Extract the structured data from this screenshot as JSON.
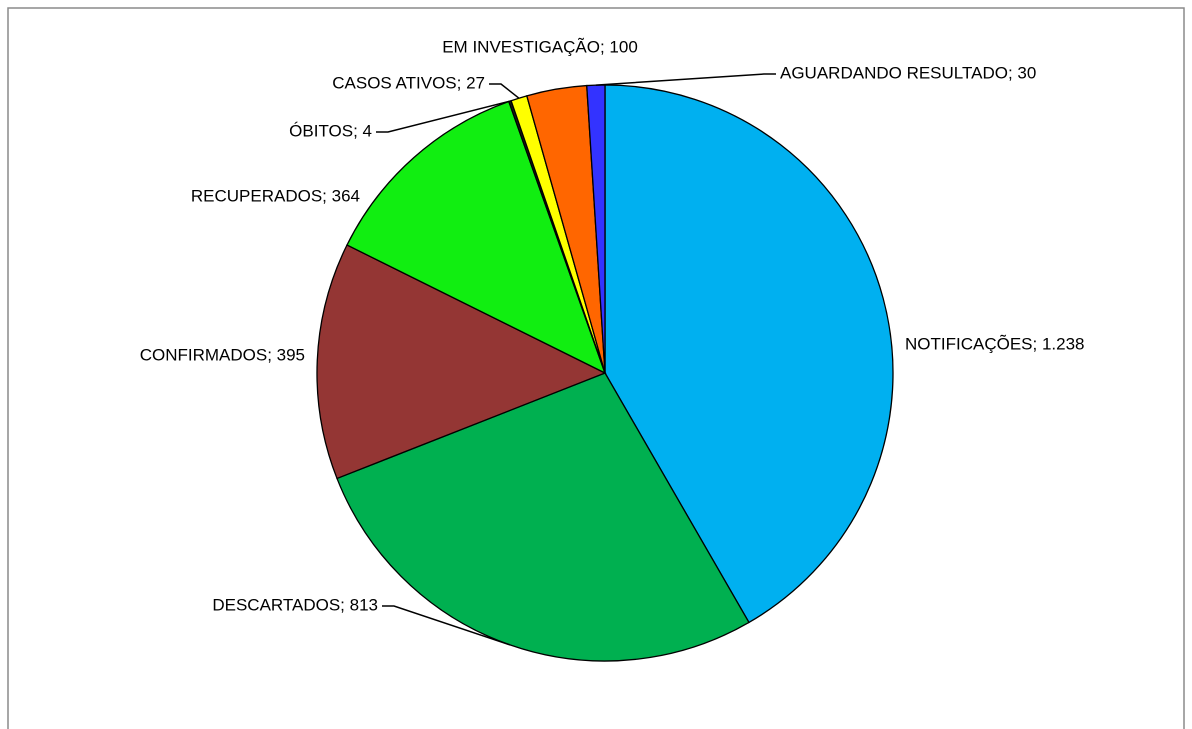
{
  "chart_data": {
    "type": "pie",
    "values": [
      1238,
      813,
      395,
      364,
      4,
      27,
      100,
      30
    ],
    "value_labels": [
      "NOTIFICAÇÕES; 1.238",
      "DESCARTADOS; 813",
      "CONFIRMADOS; 395",
      "RECUPERADOS; 364",
      "ÓBITOS; 4",
      "CASOS ATIVOS; 27",
      "EM INVESTIGAÇÃO; 100",
      "AGUARDANDO RESULTADO; 30"
    ],
    "colors": [
      "#00b0f0",
      "#00b050",
      "#943634",
      "#11ee11",
      "#1a1a1a",
      "#ffff00",
      "#ff6600",
      "#3333ff"
    ]
  }
}
